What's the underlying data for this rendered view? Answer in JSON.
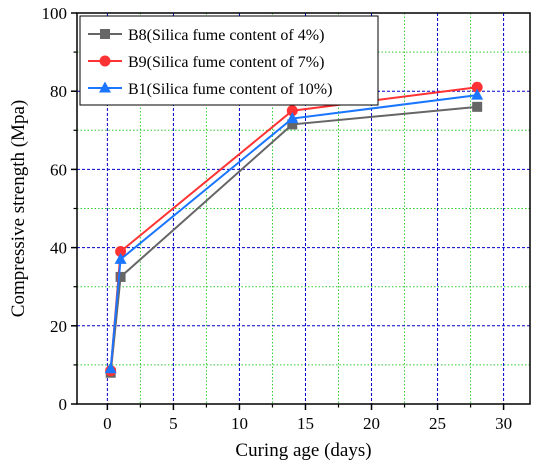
{
  "chart_data": {
    "type": "line",
    "title": "",
    "xlabel": "Curing age (days)",
    "ylabel": "Compressive strength (Mpa)",
    "xlim": [
      -2.3,
      32
    ],
    "ylim": [
      0,
      100
    ],
    "x_ticks": [
      0,
      5,
      10,
      15,
      20,
      25,
      30
    ],
    "y_ticks": [
      0,
      20,
      40,
      60,
      80,
      100
    ],
    "x_tick_labels": [
      "0",
      "5",
      "10",
      "15",
      "20",
      "25",
      "30"
    ],
    "y_tick_labels": [
      "0",
      "20",
      "40",
      "60",
      "80",
      "100"
    ],
    "grid": true,
    "grid_major_color": "#0000cc",
    "grid_minor_color": "#33cc33",
    "legend_position": "top-left",
    "x": [
      0.25,
      1,
      14,
      28
    ],
    "series": [
      {
        "name": "B8(Silica fume content of 4%)",
        "values": [
          8,
          32.5,
          71.5,
          76
        ],
        "color": "#666666",
        "marker": "square"
      },
      {
        "name": "B9(Silica fume content of 7%)",
        "values": [
          8.5,
          39,
          75,
          81
        ],
        "color": "#ff3333",
        "marker": "circle"
      },
      {
        "name": "B1(Silica fume content of 10%)",
        "values": [
          9,
          37,
          73,
          79
        ],
        "color": "#1a75ff",
        "marker": "triangle"
      }
    ]
  }
}
